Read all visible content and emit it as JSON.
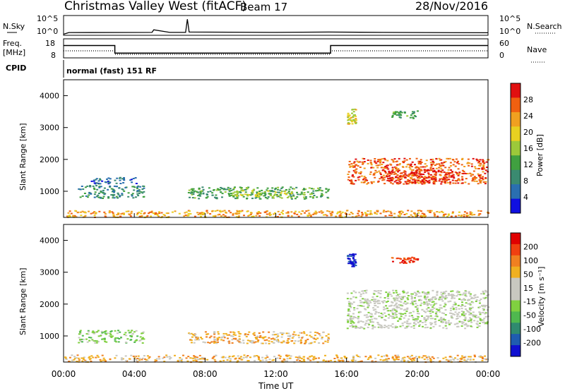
{
  "header": {
    "station": "Christmas Valley West (fitACF)",
    "beam": "Beam 17",
    "date": "28/Nov/2016"
  },
  "panels": {
    "nsky": {
      "label": "N.Sky",
      "ticks": [
        "10^5",
        "10^0"
      ],
      "right_label": "N.Search",
      "right_ticks": [
        "10^5",
        "10^0"
      ]
    },
    "freq": {
      "label_line1": "Freq.",
      "label_line2": "[MHz]",
      "ticks": [
        "18",
        "8"
      ],
      "right_label": "Nave",
      "right_ticks": [
        "60",
        "0"
      ]
    },
    "cpid": {
      "label": "CPID",
      "text": "normal (fast) 151 RF"
    },
    "power": {
      "ylabel": "Slant Range [km]",
      "yticks": [
        "1000",
        "2000",
        "3000",
        "4000"
      ],
      "cbar_label": "Power [dB]",
      "cbar_ticks": [
        "4",
        "8",
        "12",
        "16",
        "20",
        "24",
        "28"
      ]
    },
    "velocity": {
      "ylabel": "Slant Range [km]",
      "yticks": [
        "1000",
        "2000",
        "3000",
        "4000"
      ],
      "cbar_label": "Velocity [m s⁻¹]",
      "cbar_ticks": [
        "-200",
        "-100",
        "-50",
        "-15",
        "15",
        "50",
        "100",
        "200"
      ]
    }
  },
  "xaxis": {
    "label": "Time UT",
    "ticks": [
      "00:00",
      "04:00",
      "08:00",
      "12:00",
      "16:00",
      "20:00",
      "00:00"
    ]
  },
  "colors": {
    "power_scale": [
      "#1010e0",
      "#2a6fb0",
      "#3a8a70",
      "#40a040",
      "#9cc93a",
      "#e8d020",
      "#f0a020",
      "#f06010",
      "#e01010"
    ],
    "velocity_scale": [
      "#1010d0",
      "#1f5cb0",
      "#2f8a6f",
      "#4fb84f",
      "#80d040",
      "#c8c8c0",
      "#c8c8c0",
      "#f0b020",
      "#f08020",
      "#f04010",
      "#e00000"
    ]
  },
  "chart_data": [
    {
      "type": "line",
      "title": "N.Sky / N.Search",
      "x_range_hours": [
        0,
        24
      ],
      "x": [
        0,
        0.3,
        5.0,
        5.1,
        6.0,
        6.1,
        6.9,
        7.0,
        7.1,
        12,
        15,
        18,
        24
      ],
      "y_log10": [
        0.1,
        0.55,
        0.6,
        1.3,
        0.6,
        0.6,
        0.6,
        4.2,
        0.7,
        0.6,
        0.7,
        0.6,
        0.5
      ]
    },
    {
      "type": "line",
      "title": "Freq. [MHz]",
      "x_range_hours": [
        0,
        24
      ],
      "ylim": [
        8,
        18
      ],
      "series": [
        {
          "name": "Freq.",
          "x": [
            0,
            2.9,
            2.9,
            15.1,
            15.1,
            24
          ],
          "y": [
            14.5,
            14.5,
            10.5,
            10.5,
            14.5,
            14.5
          ]
        }
      ]
    },
    {
      "type": "heatmap",
      "title": "Power [dB]",
      "x_range_hours": [
        0,
        24
      ],
      "ylim": [
        180,
        4500
      ],
      "bands": [
        {
          "t0": 0,
          "t1": 24,
          "r0": 200,
          "r1": 420,
          "level": 6
        },
        {
          "t0": 0.8,
          "t1": 4.5,
          "r0": 800,
          "r1": 1200,
          "level": 2
        },
        {
          "t0": 1.5,
          "t1": 4.2,
          "r0": 1250,
          "r1": 1450,
          "level": 1
        },
        {
          "t0": 7.0,
          "t1": 15.0,
          "r0": 780,
          "r1": 1150,
          "level": 3
        },
        {
          "t0": 9.5,
          "t1": 13.0,
          "r0": 860,
          "r1": 1050,
          "level": 4
        },
        {
          "t0": 16.0,
          "t1": 24.0,
          "r0": 1250,
          "r1": 2050,
          "level": 7
        },
        {
          "t0": 18.0,
          "t1": 22.0,
          "r0": 1250,
          "r1": 1700,
          "level": 8
        },
        {
          "t0": 16.0,
          "t1": 16.5,
          "r0": 3100,
          "r1": 3600,
          "level": 5
        },
        {
          "t0": 18.5,
          "t1": 20.0,
          "r0": 3300,
          "r1": 3550,
          "level": 3
        }
      ]
    },
    {
      "type": "heatmap",
      "title": "Velocity [m s⁻¹]",
      "x_range_hours": [
        0,
        24
      ],
      "ylim": [
        180,
        4500
      ],
      "bands": [
        {
          "t0": 0,
          "t1": 24,
          "r0": 200,
          "r1": 420,
          "level": 7
        },
        {
          "t0": 0.8,
          "t1": 4.5,
          "r0": 800,
          "r1": 1200,
          "level": 4
        },
        {
          "t0": 7.0,
          "t1": 15.0,
          "r0": 780,
          "r1": 1150,
          "level": 7
        },
        {
          "t0": 16.0,
          "t1": 24.0,
          "r0": 1250,
          "r1": 2450,
          "level": 5
        },
        {
          "t0": 16.0,
          "t1": 16.5,
          "r0": 3200,
          "r1": 3600,
          "level": 0
        },
        {
          "t0": 18.5,
          "t1": 20.0,
          "r0": 3300,
          "r1": 3500,
          "level": 9
        }
      ]
    }
  ]
}
